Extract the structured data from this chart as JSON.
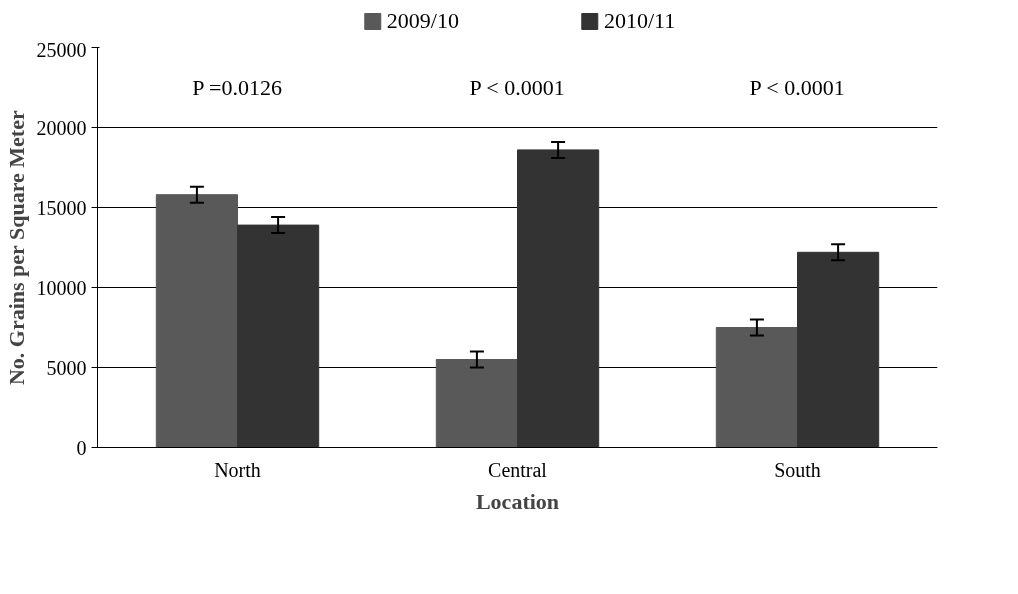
{
  "chart_data": {
    "type": "bar",
    "xlabel": "Location",
    "ylabel": "No. Grains per Square Meter",
    "categories": [
      "North",
      "Central",
      "South"
    ],
    "series": [
      {
        "name": "2009/10",
        "color": "#595959",
        "values": [
          15800,
          5500,
          7500
        ],
        "errors": [
          500,
          500,
          500
        ]
      },
      {
        "name": "2010/11",
        "color": "#333333",
        "values": [
          13900,
          18600,
          12200
        ],
        "errors": [
          500,
          500,
          500
        ]
      }
    ],
    "ylim": [
      0,
      25000
    ],
    "yticks": [
      0,
      5000,
      10000,
      15000,
      20000,
      25000
    ],
    "grid": "y",
    "legend": "top",
    "annotations": [
      "P =0.0126",
      "P < 0.0001",
      "P < 0.0001"
    ]
  }
}
